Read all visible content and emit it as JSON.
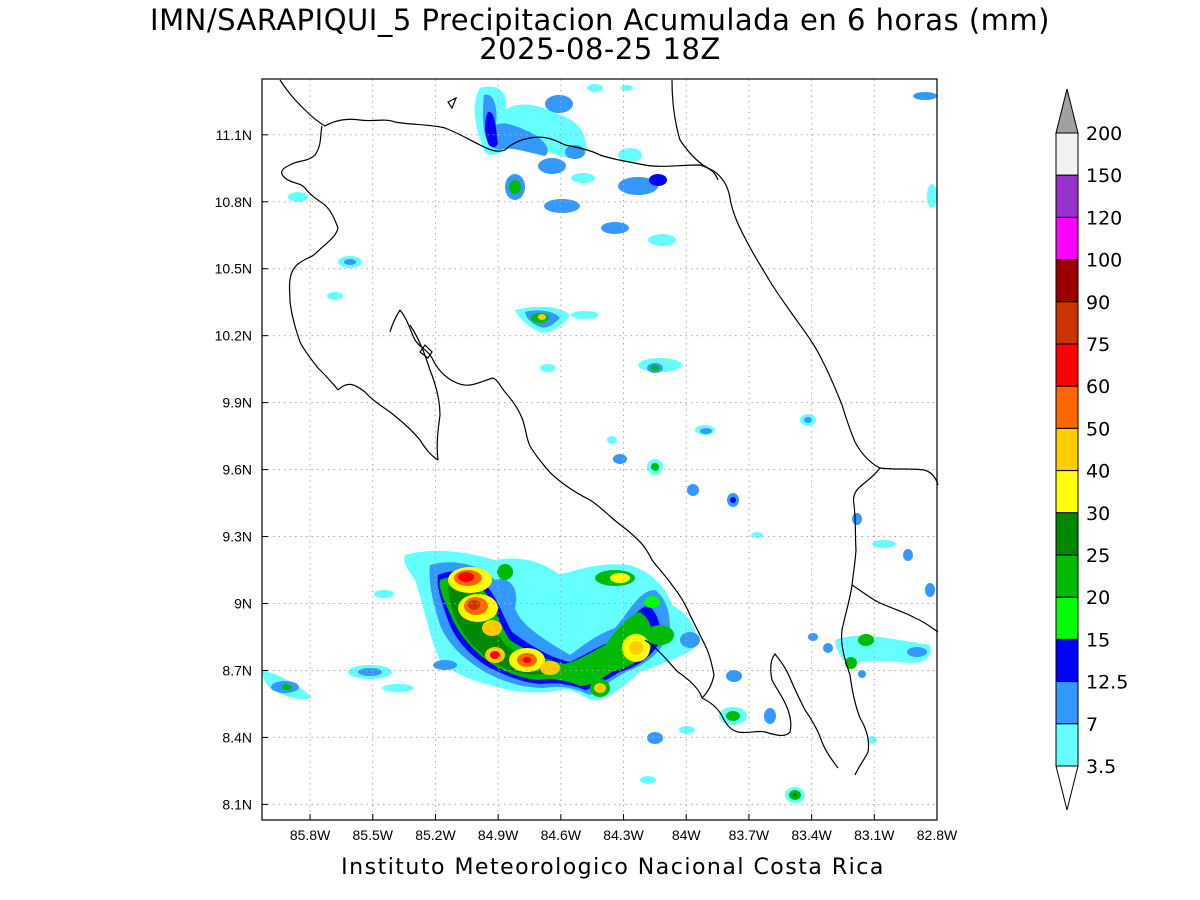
{
  "map": {
    "title": "IMN/SARAPIQUI_5 Precipitacion Acumulada en 6 horas (mm)",
    "subtitle": "2025-08-25 18Z",
    "credit": "Instituto Meteorologico Nacional Costa Rica",
    "lon_range": [
      -86.03,
      -82.8
    ],
    "lat_range": [
      8.03,
      11.35
    ],
    "lon_labels": [
      "85.8W",
      "85.5W",
      "85.2W",
      "84.9W",
      "84.6W",
      "84.3W",
      "84W",
      "83.7W",
      "83.4W",
      "83.1W",
      "82.8W"
    ],
    "lon_values": [
      -85.8,
      -85.5,
      -85.2,
      -84.9,
      -84.6,
      -84.3,
      -84.0,
      -83.7,
      -83.4,
      -83.1,
      -82.8
    ],
    "lat_labels": [
      "11.1N",
      "10.8N",
      "10.5N",
      "10.2N",
      "9.9N",
      "9.6N",
      "9.3N",
      "9N",
      "8.7N",
      "8.4N",
      "8.1N"
    ],
    "lat_values": [
      11.1,
      10.8,
      10.5,
      10.2,
      9.9,
      9.6,
      9.3,
      9.0,
      8.7,
      8.4,
      8.1
    ],
    "grid": true
  },
  "legend": {
    "labels": [
      "200",
      "150",
      "120",
      "100",
      "90",
      "75",
      "60",
      "50",
      "40",
      "30",
      "25",
      "20",
      "15",
      "12.5",
      "7",
      "3.5"
    ],
    "colors": [
      "#f2f2f2",
      "#9933cc",
      "#ff00ff",
      "#990000",
      "#cc3300",
      "#ff0000",
      "#ff6600",
      "#ffcc00",
      "#ffff00",
      "#008800",
      "#00bb00",
      "#00ff00",
      "#0000ff",
      "#3399ff",
      "#66ffff"
    ],
    "over_color": "#a0a0a0",
    "under_color": "#ffffff"
  }
}
